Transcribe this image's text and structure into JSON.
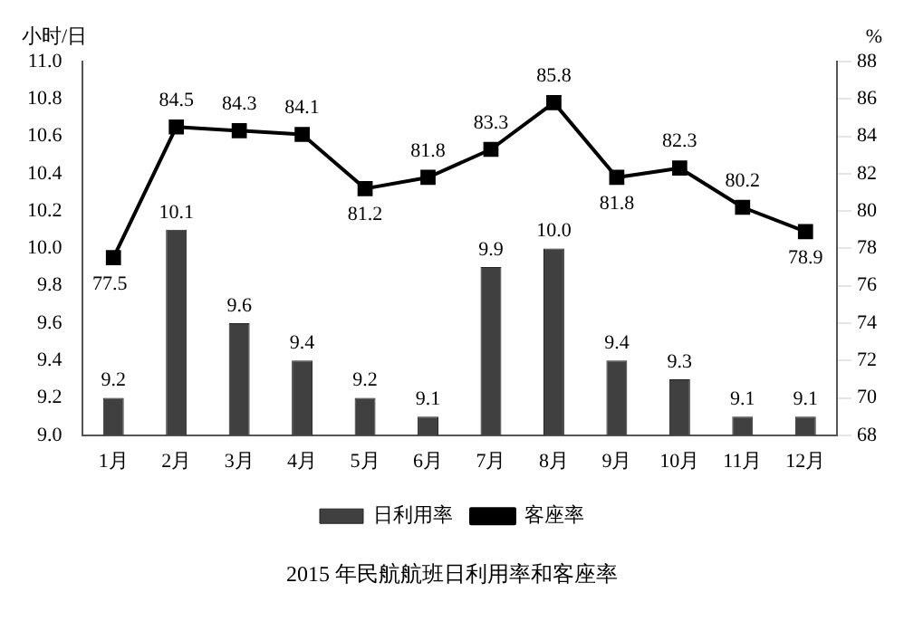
{
  "chart_data": {
    "type": "bar",
    "title": "2015 年民航航班日利用率和客座率",
    "ylabel": "小时/日",
    "y2label": "%",
    "categories": [
      "1月",
      "2月",
      "3月",
      "4月",
      "5月",
      "6月",
      "7月",
      "8月",
      "9月",
      "10月",
      "11月",
      "12月"
    ],
    "series": [
      {
        "name": "日利用率",
        "color": "#404040",
        "values": [
          9.2,
          10.1,
          9.6,
          9.4,
          9.2,
          9.1,
          9.9,
          10.0,
          9.4,
          9.3,
          9.1,
          9.1
        ],
        "value_labels": [
          "9.2",
          "10.1",
          "9.6",
          "9.4",
          "9.2",
          "9.1",
          "9.9",
          "10.0",
          "9.4",
          "9.3",
          "9.1",
          "9.1"
        ]
      },
      {
        "name": "客座率",
        "type": "line",
        "axis": "y2",
        "color": "#000000",
        "marker": "square",
        "values": [
          77.5,
          84.5,
          84.3,
          84.1,
          81.2,
          81.8,
          83.3,
          85.8,
          81.8,
          82.3,
          80.2,
          78.9
        ],
        "value_labels": [
          "77.5",
          "84.5",
          "84.3",
          "84.1",
          "81.2",
          "81.8",
          "83.3",
          "85.8",
          "81.8",
          "82.3",
          "80.2",
          "78.9"
        ]
      }
    ],
    "ylim": [
      9,
      11
    ],
    "yticks": [
      {
        "value": 9,
        "label": "9.0"
      },
      9.2,
      9.4,
      9.6,
      9.8,
      {
        "value": 10,
        "label": "10.0"
      },
      10.2,
      10.4,
      10.6,
      10.8,
      {
        "value": 11,
        "label": "11.0"
      }
    ],
    "y2lim": [
      68,
      88
    ],
    "y2ticks": [
      68,
      70,
      72,
      74,
      76,
      78,
      80,
      82,
      84,
      86,
      88
    ],
    "grid": false,
    "legend": "bottom"
  }
}
